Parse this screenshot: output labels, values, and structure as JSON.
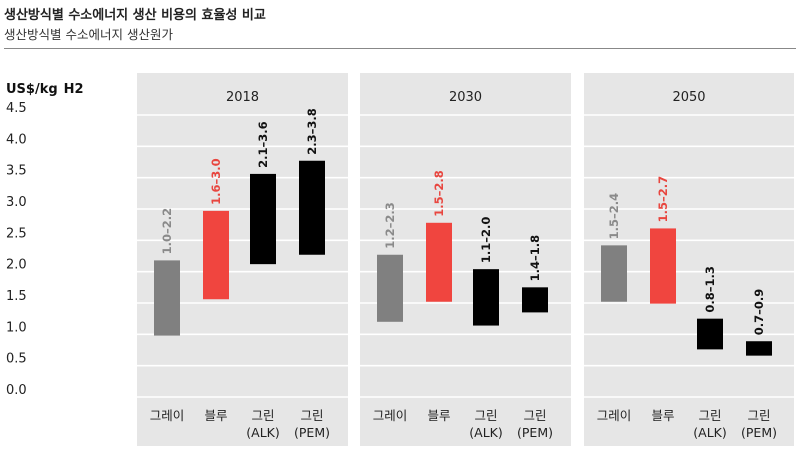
{
  "header": {
    "title": "생산방식별 수소에너지 생산 비용의 효율성 비교",
    "subtitle": "생산방식별 수소에너지 생산원가"
  },
  "colors": {
    "gray": "#808080",
    "blue": "#f0453f",
    "green": "#000000",
    "panel_bg": "#e6e6e6",
    "gray_text": "#8a8a8a",
    "red_text": "#e8463f"
  },
  "chart_data": {
    "type": "bar",
    "subtype": "floating-range",
    "ylabel": "US$/kg",
    "ylabel_subscript": "H2",
    "ylim": [
      0.0,
      4.5
    ],
    "yticks": [
      "0.0",
      "0.5",
      "1.0",
      "1.5",
      "2.0",
      "2.5",
      "3.0",
      "3.5",
      "4.0",
      "4.5"
    ],
    "periods": [
      {
        "year": "2018",
        "bars": [
          {
            "cat": "그레이",
            "cat2": "",
            "color": "gray",
            "low": 0.98,
            "high": 2.18,
            "label": "1.0–2.2"
          },
          {
            "cat": "블루",
            "cat2": "",
            "color": "blue",
            "low": 1.56,
            "high": 2.97,
            "label": "1.6–3.0"
          },
          {
            "cat": "그린",
            "cat2": "(ALK)",
            "color": "green",
            "low": 2.12,
            "high": 3.56,
            "label": "2.1–3.6"
          },
          {
            "cat": "그린",
            "cat2": "(PEM)",
            "color": "green",
            "low": 2.27,
            "high": 3.77,
            "label": "2.3–3.8"
          }
        ]
      },
      {
        "year": "2030",
        "bars": [
          {
            "cat": "그레이",
            "cat2": "",
            "color": "gray",
            "low": 1.2,
            "high": 2.27,
            "label": "1.2–2.3"
          },
          {
            "cat": "블루",
            "cat2": "",
            "color": "blue",
            "low": 1.52,
            "high": 2.78,
            "label": "1.5–2.8"
          },
          {
            "cat": "그린",
            "cat2": "(ALK)",
            "color": "green",
            "low": 1.14,
            "high": 2.04,
            "label": "1.1–2.0"
          },
          {
            "cat": "그린",
            "cat2": "(PEM)",
            "color": "green",
            "low": 1.35,
            "high": 1.75,
            "label": "1.4–1.8"
          }
        ]
      },
      {
        "year": "2050",
        "bars": [
          {
            "cat": "그레이",
            "cat2": "",
            "color": "gray",
            "low": 1.52,
            "high": 2.42,
            "label": "1.5–2.4"
          },
          {
            "cat": "블루",
            "cat2": "",
            "color": "blue",
            "low": 1.49,
            "high": 2.69,
            "label": "1.5–2.7"
          },
          {
            "cat": "그린",
            "cat2": "(ALK)",
            "color": "green",
            "low": 0.76,
            "high": 1.25,
            "label": "0.8–1.3"
          },
          {
            "cat": "그린",
            "cat2": "(PEM)",
            "color": "green",
            "low": 0.66,
            "high": 0.89,
            "label": "0.7–0.9"
          }
        ]
      }
    ]
  }
}
